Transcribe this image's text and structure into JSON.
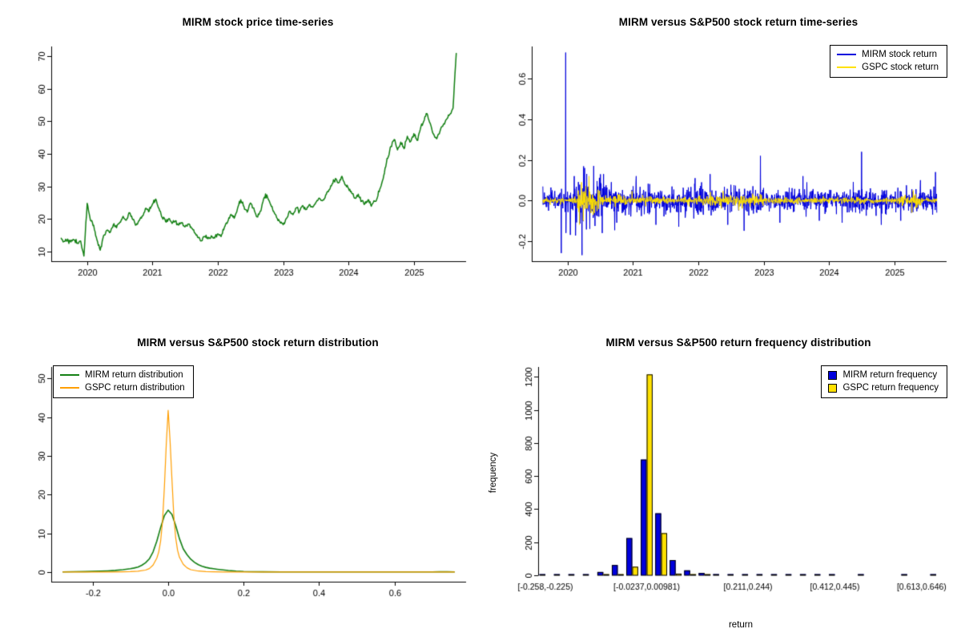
{
  "figure": {
    "background": "#ffffff"
  },
  "charts": [
    {
      "id": "price_ts",
      "type": "line",
      "title": "MIRM stock price time-series",
      "xlim": [
        2019.45,
        2025.8
      ],
      "ylim": [
        7,
        73
      ],
      "x_ticks": [
        2020,
        2021,
        2022,
        2023,
        2024,
        2025
      ],
      "x_tick_labels": [
        "2020",
        "2021",
        "2022",
        "2023",
        "2024",
        "2025"
      ],
      "y_ticks": [
        10,
        20,
        30,
        40,
        50,
        60,
        70
      ],
      "y_tick_labels": [
        "10",
        "20",
        "30",
        "40",
        "50",
        "60",
        "70"
      ],
      "series": [
        {
          "name": "MIRM stock price",
          "color": "#148014",
          "width": 1.5,
          "jitter": 0.3,
          "interp": 5,
          "seed": 42,
          "x_start": 2019.6,
          "x_step": 0.05,
          "y": [
            14.2,
            13.1,
            13.8,
            12.9,
            13.5,
            12.6,
            13.2,
            8.6,
            24.8,
            19.5,
            18.0,
            13.5,
            10.4,
            14.8,
            16.5,
            15.8,
            18.2,
            17.3,
            19.0,
            20.8,
            19.6,
            21.9,
            19.8,
            18.2,
            19.6,
            20.9,
            23.3,
            22.4,
            24.6,
            26.1,
            23.2,
            20.4,
            19.2,
            20.1,
            18.6,
            19.4,
            18.1,
            18.9,
            17.6,
            18.4,
            17.1,
            15.6,
            14.2,
            13.3,
            14.6,
            13.9,
            14.8,
            14.1,
            15.4,
            14.6,
            17.4,
            19.1,
            21.4,
            20.2,
            23.1,
            25.9,
            23.8,
            22.1,
            24.9,
            23.4,
            20.6,
            22.4,
            26.1,
            27.4,
            24.8,
            22.3,
            20.4,
            19.1,
            18.2,
            20.1,
            22.4,
            21.3,
            23.4,
            22.4,
            24.1,
            22.9,
            24.4,
            23.6,
            25.1,
            26.4,
            25.6,
            27.3,
            28.9,
            30.8,
            32.4,
            31.1,
            33.1,
            30.4,
            29.4,
            27.9,
            26.4,
            27.6,
            25.4,
            24.6,
            25.9,
            23.9,
            25.4,
            27.1,
            30.2,
            34.1,
            38.6,
            42.3,
            44.4,
            41.2,
            43.6,
            41.6,
            45.4,
            43.8,
            46.2,
            44.1,
            47.6,
            49.9,
            52.4,
            49.4,
            46.1,
            44.6,
            46.9,
            48.9,
            50.6,
            52.1,
            54.0,
            71.0
          ]
        }
      ]
    },
    {
      "id": "return_ts",
      "type": "returns",
      "title": "MIRM versus S&P500 stock return time-series",
      "xlim": [
        2019.45,
        2025.8
      ],
      "ylim": [
        -0.3,
        0.76
      ],
      "x_ticks": [
        2020,
        2021,
        2022,
        2023,
        2024,
        2025
      ],
      "x_tick_labels": [
        "2020",
        "2021",
        "2022",
        "2023",
        "2024",
        "2025"
      ],
      "y_ticks": [
        -0.2,
        0.0,
        0.2,
        0.4,
        0.6
      ],
      "y_tick_labels": [
        "-0.2",
        "0.0",
        "0.2",
        "0.4",
        "0.6"
      ],
      "n_points": 1520,
      "x_start": 2019.62,
      "x_end": 2025.65,
      "series": [
        {
          "name": "MIRM stock return",
          "color": "#0000dd",
          "seed": 7,
          "segments": [
            {
              "from": 2019.62,
              "to": 2020.1,
              "sd": 0.025
            },
            {
              "from": 2020.1,
              "to": 2020.6,
              "sd": 0.055
            },
            {
              "from": 2020.6,
              "to": 2021.2,
              "sd": 0.035
            },
            {
              "from": 2021.2,
              "to": 2023.0,
              "sd": 0.03
            },
            {
              "from": 2023.0,
              "to": 2024.4,
              "sd": 0.026
            },
            {
              "from": 2024.4,
              "to": 2025.65,
              "sd": 0.028
            }
          ],
          "spikes": [
            {
              "x": 2019.9,
              "v": -0.26
            },
            {
              "x": 2019.97,
              "v": 0.73
            },
            {
              "x": 2020.04,
              "v": -0.17
            },
            {
              "x": 2020.1,
              "v": 0.12
            },
            {
              "x": 2020.22,
              "v": -0.27
            },
            {
              "x": 2020.26,
              "v": 0.16
            },
            {
              "x": 2020.34,
              "v": -0.14
            },
            {
              "x": 2020.4,
              "v": 0.17
            },
            {
              "x": 2020.55,
              "v": 0.13
            },
            {
              "x": 2020.75,
              "v": -0.11
            },
            {
              "x": 2021.05,
              "v": 0.12
            },
            {
              "x": 2021.35,
              "v": -0.12
            },
            {
              "x": 2021.7,
              "v": -0.13
            },
            {
              "x": 2021.95,
              "v": 0.11
            },
            {
              "x": 2022.18,
              "v": 0.13
            },
            {
              "x": 2022.45,
              "v": -0.12
            },
            {
              "x": 2022.7,
              "v": -0.15
            },
            {
              "x": 2022.95,
              "v": 0.22
            },
            {
              "x": 2023.25,
              "v": -0.11
            },
            {
              "x": 2023.6,
              "v": 0.12
            },
            {
              "x": 2023.85,
              "v": -0.1
            },
            {
              "x": 2024.2,
              "v": -0.11
            },
            {
              "x": 2024.5,
              "v": 0.24
            },
            {
              "x": 2024.8,
              "v": -0.12
            },
            {
              "x": 2025.1,
              "v": -0.1
            },
            {
              "x": 2025.4,
              "v": 0.1
            },
            {
              "x": 2025.63,
              "v": 0.14
            }
          ]
        },
        {
          "name": "GSPC stock return",
          "color": "#ffe100",
          "seed": 11,
          "segments": [
            {
              "from": 2019.62,
              "to": 2020.15,
              "sd": 0.006
            },
            {
              "from": 2020.15,
              "to": 2020.5,
              "sd": 0.028
            },
            {
              "from": 2020.5,
              "to": 2020.9,
              "sd": 0.012
            },
            {
              "from": 2020.9,
              "to": 2022.0,
              "sd": 0.008
            },
            {
              "from": 2022.0,
              "to": 2023.0,
              "sd": 0.013
            },
            {
              "from": 2023.0,
              "to": 2025.1,
              "sd": 0.007
            },
            {
              "from": 2025.1,
              "to": 2025.4,
              "sd": 0.013
            },
            {
              "from": 2025.4,
              "to": 2025.65,
              "sd": 0.006
            }
          ],
          "spikes": [
            {
              "x": 2020.18,
              "v": -0.12
            },
            {
              "x": 2020.21,
              "v": 0.09
            },
            {
              "x": 2020.24,
              "v": -0.1
            },
            {
              "x": 2020.28,
              "v": 0.07
            },
            {
              "x": 2022.35,
              "v": -0.04
            },
            {
              "x": 2025.27,
              "v": -0.06
            },
            {
              "x": 2025.29,
              "v": 0.05
            }
          ]
        }
      ],
      "legend": {
        "position": "top-right",
        "entries": [
          {
            "label": "MIRM stock return",
            "color": "#0000dd"
          },
          {
            "label": "GSPC stock return",
            "color": "#ffe100"
          }
        ]
      }
    },
    {
      "id": "return_density",
      "type": "line",
      "title": "MIRM versus S&P500 stock return distribution",
      "xlim": [
        -0.31,
        0.79
      ],
      "ylim": [
        -2.5,
        53
      ],
      "x_ticks": [
        -0.2,
        0.0,
        0.2,
        0.4,
        0.6
      ],
      "x_tick_labels": [
        "-0.2",
        "0.0",
        "0.2",
        "0.4",
        "0.6"
      ],
      "y_ticks": [
        0,
        10,
        20,
        30,
        40,
        50
      ],
      "y_tick_labels": [
        "0",
        "10",
        "20",
        "30",
        "40",
        "50"
      ],
      "series": [
        {
          "name": "MIRM return distribution",
          "color": "#148014",
          "width": 1.6,
          "x": [
            -0.28,
            -0.25,
            -0.22,
            -0.2,
            -0.18,
            -0.16,
            -0.14,
            -0.12,
            -0.1,
            -0.09,
            -0.08,
            -0.07,
            -0.06,
            -0.05,
            -0.04,
            -0.03,
            -0.02,
            -0.01,
            0,
            0.01,
            0.02,
            0.03,
            0.04,
            0.05,
            0.06,
            0.07,
            0.08,
            0.09,
            0.1,
            0.11,
            0.12,
            0.13,
            0.14,
            0.15,
            0.16,
            0.18,
            0.2,
            0.22,
            0.25,
            0.3,
            0.35,
            0.4,
            0.45,
            0.5,
            0.55,
            0.6,
            0.65,
            0.7,
            0.72,
            0.74,
            0.76
          ],
          "y": [
            0.05,
            0.08,
            0.12,
            0.16,
            0.22,
            0.3,
            0.42,
            0.6,
            0.85,
            1.05,
            1.3,
            1.75,
            2.4,
            3.4,
            5.2,
            8,
            11.5,
            14.6,
            16,
            14.9,
            12,
            8.6,
            6,
            4.5,
            3.3,
            2.5,
            1.9,
            1.5,
            1.2,
            1,
            0.85,
            0.72,
            0.6,
            0.5,
            0.4,
            0.25,
            0.15,
            0.1,
            0.06,
            0.05,
            0.04,
            0.04,
            0.04,
            0.04,
            0.04,
            0.04,
            0.04,
            0.05,
            0.08,
            0.06,
            0.05
          ]
        },
        {
          "name": "GSPC return distribution",
          "color": "#ff9e00",
          "width": 1.2,
          "x": [
            -0.28,
            -0.2,
            -0.15,
            -0.12,
            -0.1,
            -0.08,
            -0.06,
            -0.05,
            -0.04,
            -0.03,
            -0.025,
            -0.02,
            -0.015,
            -0.01,
            -0.005,
            0,
            0.005,
            0.01,
            0.015,
            0.02,
            0.025,
            0.03,
            0.04,
            0.05,
            0.06,
            0.08,
            0.1,
            0.12,
            0.15,
            0.2,
            0.3,
            0.4,
            0.5,
            0.6,
            0.7,
            0.76
          ],
          "y": [
            0.01,
            0.02,
            0.03,
            0.06,
            0.1,
            0.22,
            0.5,
            0.9,
            1.8,
            3.6,
            5.2,
            8,
            13,
            22,
            33,
            41.8,
            34,
            24,
            14.5,
            8.8,
            5.6,
            3.8,
            2,
            1.1,
            0.6,
            0.25,
            0.12,
            0.06,
            0.03,
            0.02,
            0.01,
            0.01,
            0.01,
            0.01,
            0.01,
            0.01
          ]
        }
      ],
      "legend": {
        "position": "top-left",
        "entries": [
          {
            "label": "MIRM return distribution",
            "color": "#148014"
          },
          {
            "label": "GSPC return distribution",
            "color": "#ff9e00"
          }
        ]
      }
    },
    {
      "id": "return_hist",
      "type": "grouped_bars",
      "title": "MIRM versus S&P500 return frequency distribution",
      "xlabel": "return",
      "ylabel": "frequency",
      "ylim": [
        0,
        1260
      ],
      "y_ticks": [
        0,
        200,
        400,
        600,
        800,
        1000,
        1200
      ],
      "y_tick_labels": [
        "0",
        "200",
        "400",
        "600",
        "800",
        "1000",
        "1200"
      ],
      "n_bins": 28,
      "x_tick_bins": [
        0,
        7,
        14,
        20,
        26
      ],
      "x_tick_labels": [
        "[-0.258,-0.225)",
        "[-0.0237,0.00981)",
        "[0.211,0.244)",
        "[0.412,0.445)",
        "[0.613,0.646)"
      ],
      "series": [
        {
          "name": "MIRM return frequency",
          "color": "#0000dd",
          "values": [
            2,
            1,
            2,
            5,
            20,
            62,
            225,
            700,
            375,
            92,
            30,
            14,
            7,
            4,
            2,
            2,
            1,
            1,
            1,
            1,
            1,
            0,
            1,
            0,
            0,
            1,
            0,
            1
          ]
        },
        {
          "name": "GSPC return frequency",
          "color": "#ffe100",
          "values": [
            0,
            0,
            0,
            0,
            1,
            4,
            52,
            1215,
            255,
            10,
            2,
            1,
            0,
            0,
            0,
            0,
            0,
            0,
            0,
            0,
            0,
            0,
            0,
            0,
            0,
            0,
            0,
            0
          ]
        }
      ],
      "legend": {
        "position": "top-right",
        "entries": [
          {
            "label": "MIRM return frequency",
            "color": "#0000dd"
          },
          {
            "label": "GSPC return frequency",
            "color": "#ffe100"
          }
        ]
      }
    }
  ]
}
